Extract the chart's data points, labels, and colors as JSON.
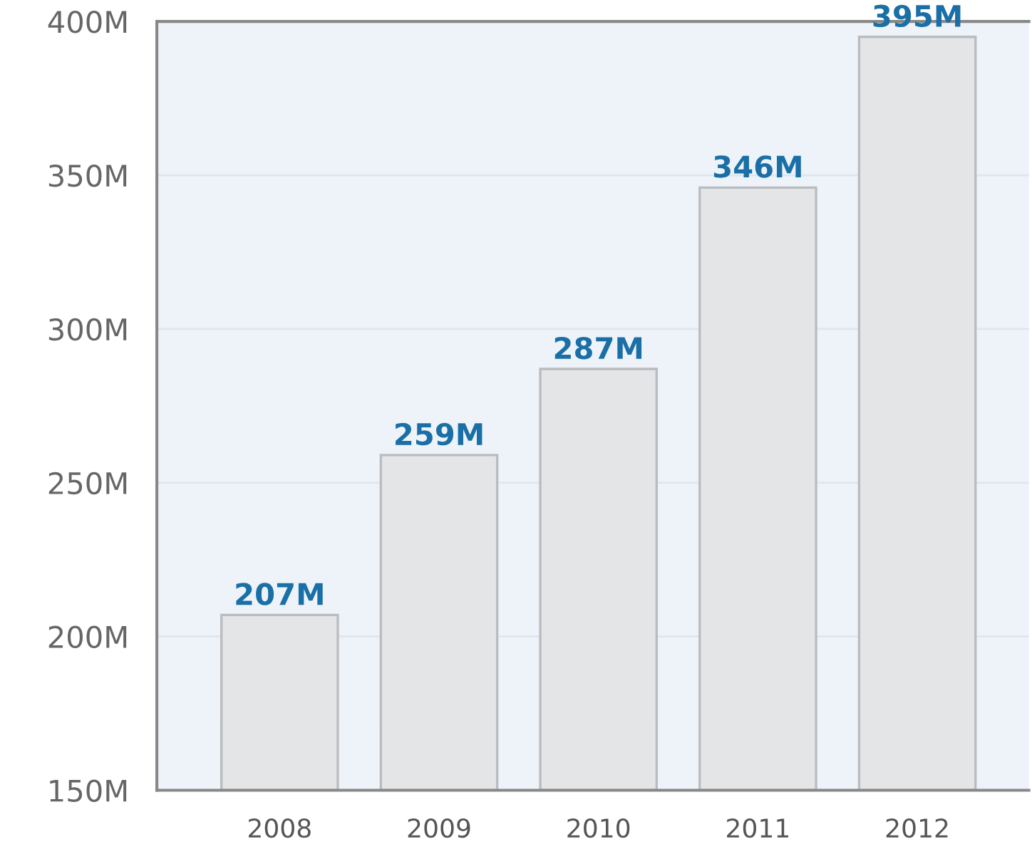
{
  "chart_data": {
    "type": "bar",
    "categories": [
      "2008",
      "2009",
      "2010",
      "2011",
      "2012"
    ],
    "values": [
      207,
      259,
      287,
      346,
      395
    ],
    "value_labels": [
      "207M",
      "259M",
      "287M",
      "346M",
      "395M"
    ],
    "color": "#e4e5e7",
    "ylim": [
      150,
      400
    ],
    "yticks": [
      {
        "value": 150,
        "label": "150M"
      },
      {
        "value": 200,
        "label": "200M"
      },
      {
        "value": 250,
        "label": "250M"
      },
      {
        "value": 300,
        "label": "300M"
      },
      {
        "value": 350,
        "label": "350M"
      },
      {
        "value": 400,
        "label": "400M"
      }
    ],
    "grid": "y"
  }
}
